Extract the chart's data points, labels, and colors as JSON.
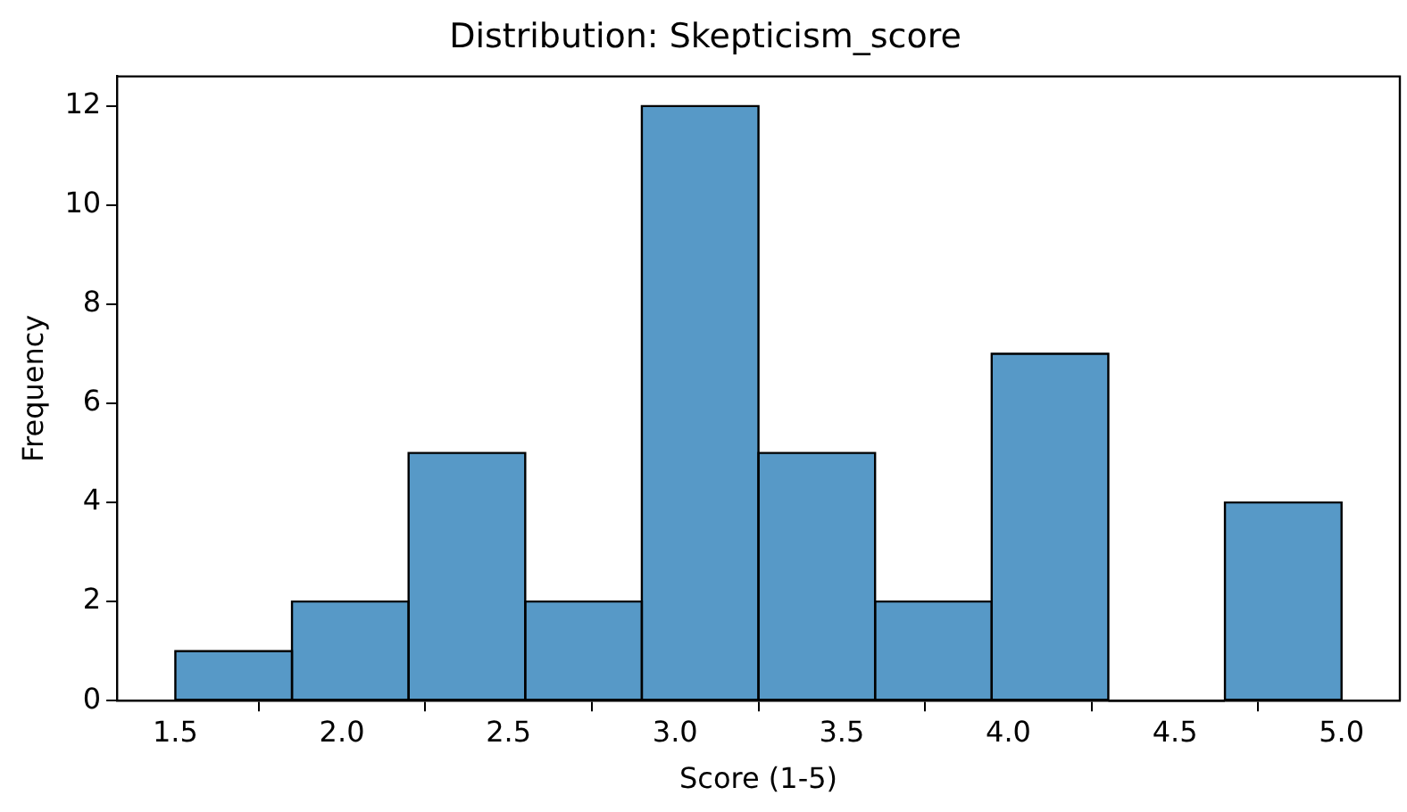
{
  "chart_data": {
    "type": "histogram",
    "title": "Distribution: Skepticism_score",
    "xlabel": "Score (1-5)",
    "ylabel": "Frequency",
    "bins": [
      1.5,
      1.85,
      2.2,
      2.55,
      2.9,
      3.25,
      3.6,
      3.95,
      4.3,
      4.65,
      5.0
    ],
    "values": [
      1,
      2,
      5,
      2,
      12,
      5,
      2,
      7,
      0,
      4
    ],
    "color": "#5799c7",
    "xlim": [
      1.325,
      5.175
    ],
    "xticks": [
      {
        "value": 1.5,
        "label": "1.5"
      },
      {
        "value": 2,
        "label": "2.0"
      },
      {
        "value": 2.5,
        "label": "2.5"
      },
      {
        "value": 3,
        "label": "3.0"
      },
      {
        "value": 3.5,
        "label": "3.5"
      },
      {
        "value": 4,
        "label": "4.0"
      },
      {
        "value": 4.5,
        "label": "4.5"
      },
      {
        "value": 5,
        "label": "5.0"
      }
    ],
    "ylim": [
      0,
      12.6
    ],
    "yticks": [
      0,
      2,
      4,
      6,
      8,
      10,
      12
    ]
  }
}
